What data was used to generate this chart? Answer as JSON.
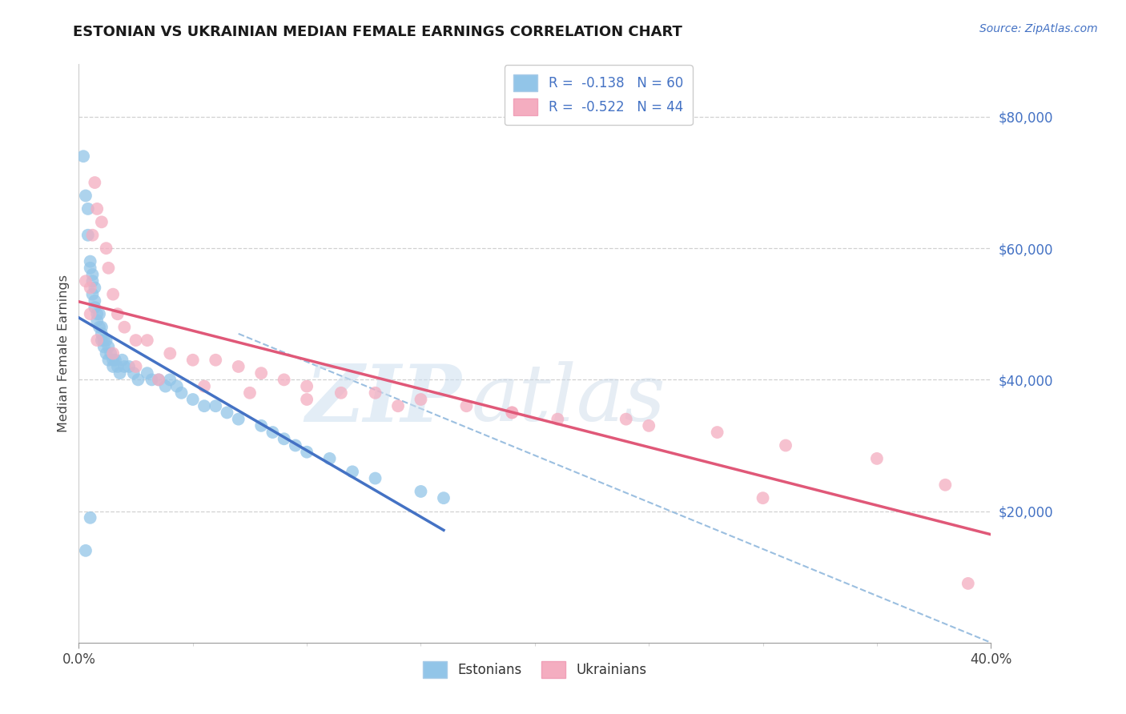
{
  "title": "ESTONIAN VS UKRAINIAN MEDIAN FEMALE EARNINGS CORRELATION CHART",
  "source": "Source: ZipAtlas.com",
  "ylabel": "Median Female Earnings",
  "xlim": [
    0.0,
    0.4
  ],
  "ylim": [
    0,
    88000
  ],
  "yticks": [
    20000,
    40000,
    60000,
    80000
  ],
  "ytick_labels": [
    "$20,000",
    "$40,000",
    "$60,000",
    "$80,000"
  ],
  "xtick_left_label": "0.0%",
  "xtick_right_label": "40.0%",
  "legend_r1": "R =  -0.138",
  "legend_n1": "N = 60",
  "legend_r2": "R =  -0.522",
  "legend_n2": "N = 44",
  "blue_color": "#92c5e8",
  "pink_color": "#f4adc0",
  "blue_line_color": "#4472c4",
  "pink_line_color": "#e05878",
  "dash_color": "#9bbfe0",
  "bg_color": "#ffffff",
  "title_color": "#1a1a1a",
  "source_color": "#4472c4",
  "yaxis_tick_color": "#4472c4",
  "grid_color": "#d0d0d0",
  "estonian_x": [
    0.002,
    0.003,
    0.004,
    0.004,
    0.005,
    0.005,
    0.006,
    0.006,
    0.006,
    0.007,
    0.007,
    0.007,
    0.008,
    0.008,
    0.009,
    0.009,
    0.01,
    0.01,
    0.01,
    0.011,
    0.011,
    0.012,
    0.012,
    0.013,
    0.013,
    0.014,
    0.015,
    0.015,
    0.016,
    0.017,
    0.018,
    0.019,
    0.02,
    0.022,
    0.024,
    0.026,
    0.03,
    0.032,
    0.035,
    0.038,
    0.04,
    0.043,
    0.045,
    0.05,
    0.055,
    0.06,
    0.065,
    0.07,
    0.08,
    0.085,
    0.09,
    0.095,
    0.1,
    0.11,
    0.12,
    0.13,
    0.15,
    0.16,
    0.005,
    0.003
  ],
  "estonian_y": [
    74000,
    68000,
    66000,
    62000,
    58000,
    57000,
    56000,
    55000,
    53000,
    54000,
    52000,
    51000,
    50000,
    49000,
    50000,
    48000,
    47000,
    46000,
    48000,
    46000,
    45000,
    44000,
    46000,
    45000,
    43000,
    44000,
    43000,
    42000,
    43000,
    42000,
    41000,
    43000,
    42000,
    42000,
    41000,
    40000,
    41000,
    40000,
    40000,
    39000,
    40000,
    39000,
    38000,
    37000,
    36000,
    36000,
    35000,
    34000,
    33000,
    32000,
    31000,
    30000,
    29000,
    28000,
    26000,
    25000,
    23000,
    22000,
    19000,
    14000
  ],
  "ukrainian_x": [
    0.003,
    0.005,
    0.006,
    0.007,
    0.008,
    0.01,
    0.012,
    0.013,
    0.015,
    0.017,
    0.02,
    0.025,
    0.03,
    0.04,
    0.05,
    0.06,
    0.07,
    0.08,
    0.09,
    0.1,
    0.115,
    0.13,
    0.15,
    0.17,
    0.19,
    0.21,
    0.25,
    0.28,
    0.31,
    0.35,
    0.38,
    0.005,
    0.008,
    0.015,
    0.025,
    0.035,
    0.055,
    0.075,
    0.1,
    0.14,
    0.19,
    0.24,
    0.3,
    0.39
  ],
  "ukrainian_y": [
    55000,
    54000,
    62000,
    70000,
    66000,
    64000,
    60000,
    57000,
    53000,
    50000,
    48000,
    46000,
    46000,
    44000,
    43000,
    43000,
    42000,
    41000,
    40000,
    39000,
    38000,
    38000,
    37000,
    36000,
    35000,
    34000,
    33000,
    32000,
    30000,
    28000,
    24000,
    50000,
    46000,
    44000,
    42000,
    40000,
    39000,
    38000,
    37000,
    36000,
    35000,
    34000,
    22000,
    9000
  ]
}
